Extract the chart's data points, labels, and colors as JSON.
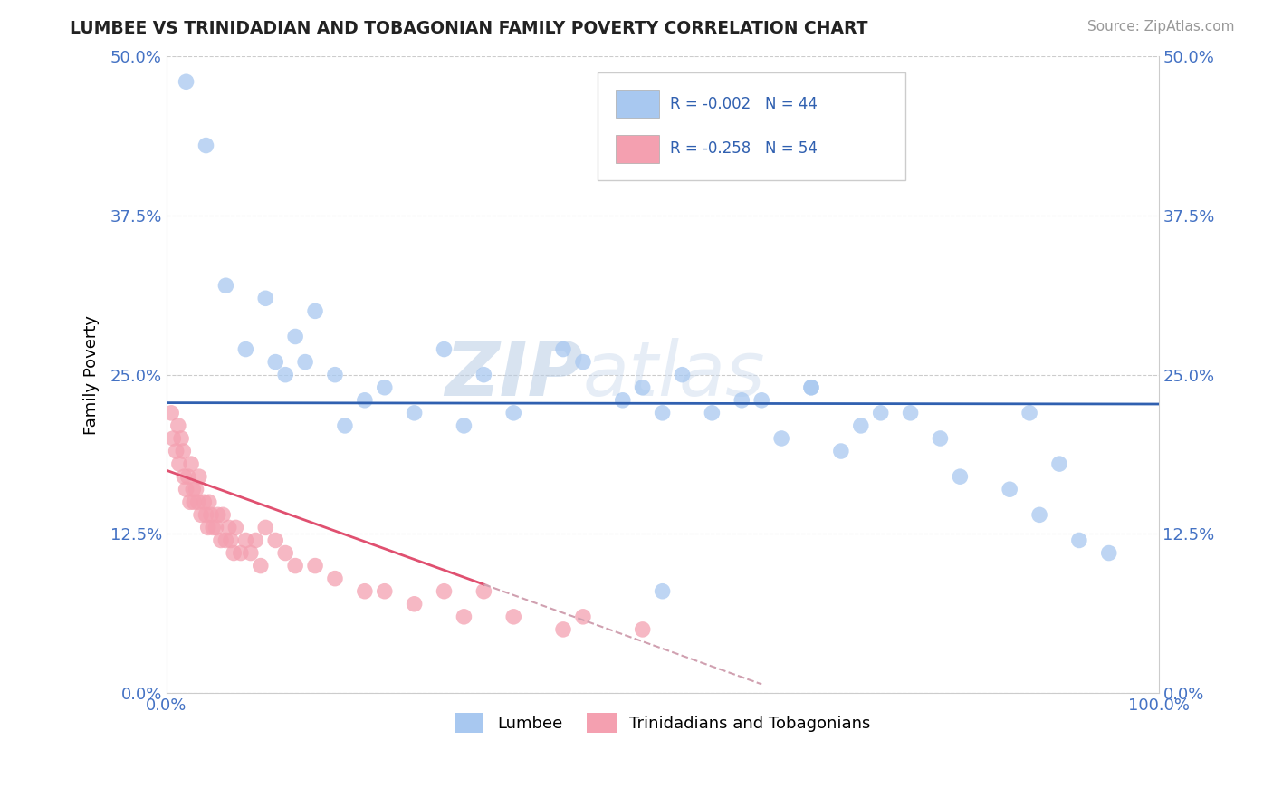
{
  "title": "LUMBEE VS TRINIDADIAN AND TOBAGONIAN FAMILY POVERTY CORRELATION CHART",
  "source": "Source: ZipAtlas.com",
  "ylabel": "Family Poverty",
  "xmin": 0.0,
  "xmax": 1.0,
  "ymin": 0.0,
  "ymax": 0.5,
  "yticks": [
    0.0,
    0.125,
    0.25,
    0.375,
    0.5
  ],
  "yticklabels": [
    "0.0%",
    "12.5%",
    "25.0%",
    "37.5%",
    "50.0%"
  ],
  "xticks": [
    0.0,
    1.0
  ],
  "xticklabels": [
    "0.0%",
    "100.0%"
  ],
  "legend_labels": [
    "Lumbee",
    "Trinidadians and Tobagonians"
  ],
  "blue_R": "-0.002",
  "blue_N": "44",
  "pink_R": "-0.258",
  "pink_N": "54",
  "blue_color": "#a8c8f0",
  "pink_color": "#f4a0b0",
  "blue_line_color": "#3060b0",
  "pink_line_color": "#e05070",
  "pink_line_dash": "#d0a0b0",
  "watermark_text": "ZIPatlas",
  "blue_scatter_x": [
    0.02,
    0.04,
    0.06,
    0.08,
    0.1,
    0.11,
    0.12,
    0.13,
    0.14,
    0.15,
    0.17,
    0.18,
    0.2,
    0.22,
    0.25,
    0.28,
    0.32,
    0.35,
    0.4,
    0.46,
    0.48,
    0.5,
    0.52,
    0.55,
    0.6,
    0.62,
    0.65,
    0.7,
    0.72,
    0.75,
    0.78,
    0.8,
    0.85,
    0.87,
    0.88,
    0.9,
    0.92,
    0.95,
    0.3,
    0.42,
    0.58,
    0.65,
    0.68,
    0.5
  ],
  "blue_scatter_y": [
    0.48,
    0.43,
    0.32,
    0.27,
    0.31,
    0.26,
    0.25,
    0.28,
    0.26,
    0.3,
    0.25,
    0.21,
    0.23,
    0.24,
    0.22,
    0.27,
    0.25,
    0.22,
    0.27,
    0.23,
    0.24,
    0.22,
    0.25,
    0.22,
    0.23,
    0.2,
    0.24,
    0.21,
    0.22,
    0.22,
    0.2,
    0.17,
    0.16,
    0.22,
    0.14,
    0.18,
    0.12,
    0.11,
    0.21,
    0.26,
    0.23,
    0.24,
    0.19,
    0.08
  ],
  "pink_scatter_x": [
    0.005,
    0.007,
    0.01,
    0.012,
    0.013,
    0.015,
    0.017,
    0.018,
    0.02,
    0.022,
    0.024,
    0.025,
    0.027,
    0.028,
    0.03,
    0.032,
    0.033,
    0.035,
    0.038,
    0.04,
    0.042,
    0.043,
    0.045,
    0.047,
    0.05,
    0.052,
    0.055,
    0.057,
    0.06,
    0.063,
    0.065,
    0.068,
    0.07,
    0.075,
    0.08,
    0.085,
    0.09,
    0.095,
    0.1,
    0.11,
    0.12,
    0.13,
    0.15,
    0.17,
    0.2,
    0.22,
    0.25,
    0.28,
    0.3,
    0.32,
    0.35,
    0.4,
    0.42,
    0.48
  ],
  "pink_scatter_y": [
    0.22,
    0.2,
    0.19,
    0.21,
    0.18,
    0.2,
    0.19,
    0.17,
    0.16,
    0.17,
    0.15,
    0.18,
    0.16,
    0.15,
    0.16,
    0.15,
    0.17,
    0.14,
    0.15,
    0.14,
    0.13,
    0.15,
    0.14,
    0.13,
    0.13,
    0.14,
    0.12,
    0.14,
    0.12,
    0.13,
    0.12,
    0.11,
    0.13,
    0.11,
    0.12,
    0.11,
    0.12,
    0.1,
    0.13,
    0.12,
    0.11,
    0.1,
    0.1,
    0.09,
    0.08,
    0.08,
    0.07,
    0.08,
    0.06,
    0.08,
    0.06,
    0.05,
    0.06,
    0.05
  ],
  "blue_line_y_intercept": 0.228,
  "blue_line_slope": -0.001,
  "pink_line_y_intercept": 0.175,
  "pink_line_slope": -0.28
}
